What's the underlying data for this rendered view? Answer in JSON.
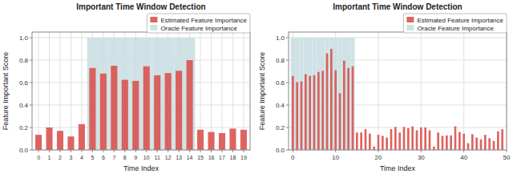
{
  "chart_data": [
    {
      "type": "bar",
      "title": "Important Time Window Detection",
      "xlabel": "Time Index",
      "ylabel": "Feature Important Score",
      "x": [
        0,
        1,
        2,
        3,
        4,
        5,
        6,
        7,
        8,
        9,
        10,
        11,
        12,
        13,
        14,
        15,
        16,
        17,
        18,
        19
      ],
      "xlim": [
        -0.6,
        19.6
      ],
      "xticks": [
        0,
        1,
        2,
        3,
        4,
        5,
        6,
        7,
        8,
        9,
        10,
        11,
        12,
        13,
        14,
        15,
        16,
        17,
        18,
        19
      ],
      "ylim": [
        0.0,
        1.05
      ],
      "yticks": [
        {
          "value": 0.0,
          "label": "0.0"
        },
        0.2,
        0.4,
        0.6,
        0.8,
        {
          "value": 1.0,
          "label": "1.0"
        }
      ],
      "grid": true,
      "legend": "upper right",
      "series": [
        {
          "name": "Estimated Feature Importance",
          "type": "bar",
          "color": "#d9534f",
          "values": [
            0.135,
            0.2,
            0.17,
            0.12,
            0.23,
            0.73,
            0.68,
            0.75,
            0.625,
            0.615,
            0.745,
            0.665,
            0.685,
            0.705,
            0.8,
            0.18,
            0.16,
            0.15,
            0.19,
            0.18
          ]
        },
        {
          "name": "Oracle Feature Importance",
          "type": "span",
          "color": "#c8dde0",
          "values": [
            0,
            0,
            0,
            0,
            0,
            1,
            1,
            1,
            1,
            1,
            1,
            1,
            1,
            1,
            1,
            0,
            0,
            0,
            0,
            0
          ]
        }
      ]
    },
    {
      "type": "bar",
      "title": "Important Time Window Detection",
      "xlabel": "Time Index",
      "ylabel": "Feature Important Score",
      "x": [
        0,
        1,
        2,
        3,
        4,
        5,
        6,
        7,
        8,
        9,
        10,
        11,
        12,
        13,
        14,
        15,
        16,
        17,
        18,
        19,
        20,
        21,
        22,
        23,
        24,
        25,
        26,
        27,
        28,
        29,
        30,
        31,
        32,
        33,
        34,
        35,
        36,
        37,
        38,
        39,
        40,
        41,
        42,
        43,
        44,
        45,
        46,
        47,
        48,
        49
      ],
      "xlim": [
        -1,
        50
      ],
      "xticks": [
        0,
        10,
        20,
        30,
        40,
        50
      ],
      "ylim": [
        0.0,
        1.05
      ],
      "yticks": [
        {
          "value": 0.0,
          "label": "0.0"
        },
        0.2,
        0.4,
        0.6,
        0.8,
        {
          "value": 1.0,
          "label": "1.0"
        }
      ],
      "grid": true,
      "legend": "upper right",
      "series": [
        {
          "name": "Estimated Feature Importance",
          "type": "bar",
          "color": "#d9534f",
          "values": [
            0.66,
            0.605,
            0.61,
            0.675,
            0.66,
            0.665,
            0.695,
            0.705,
            0.86,
            0.9,
            0.71,
            0.505,
            0.795,
            0.73,
            0.745,
            0.155,
            0.155,
            0.185,
            0.145,
            0.03,
            0.135,
            0.125,
            0.11,
            0.185,
            0.205,
            0.155,
            0.205,
            0.195,
            0.21,
            0.175,
            0.2,
            0.2,
            0.175,
            0.03,
            0.155,
            0.125,
            0.13,
            0.13,
            0.21,
            0.16,
            0.145,
            0.06,
            0.14,
            0.11,
            0.095,
            0.135,
            0.105,
            0.08,
            0.165,
            0.185
          ]
        },
        {
          "name": "Oracle Feature Importance",
          "type": "span",
          "color": "#c8dde0",
          "values": [
            1,
            1,
            1,
            1,
            1,
            1,
            1,
            1,
            1,
            1,
            1,
            1,
            1,
            1,
            1,
            0,
            0,
            0,
            0,
            0,
            0,
            0,
            0,
            0,
            0,
            0,
            0,
            0,
            0,
            0,
            0,
            0,
            0,
            0,
            0,
            0,
            0,
            0,
            0,
            0,
            0,
            0,
            0,
            0,
            0,
            0,
            0,
            0,
            0,
            0
          ]
        }
      ]
    }
  ]
}
